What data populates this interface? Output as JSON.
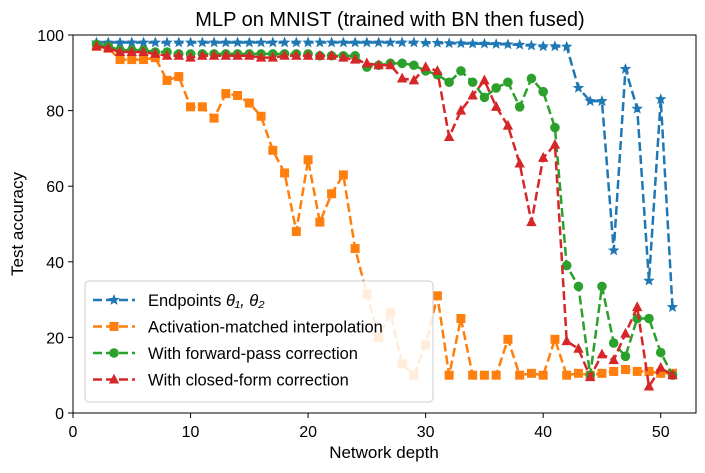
{
  "chart_data": {
    "type": "line",
    "title": "MLP on MNIST (trained with BN then fused)",
    "xlabel": "Network depth",
    "ylabel": "Test accuracy",
    "xlim": [
      0,
      53
    ],
    "ylim": [
      0,
      100
    ],
    "xticks": [
      0,
      10,
      20,
      30,
      40,
      50
    ],
    "yticks": [
      0,
      20,
      40,
      60,
      80,
      100
    ],
    "grid": false,
    "legend_position": "lower-left",
    "x": [
      2,
      3,
      4,
      5,
      6,
      7,
      8,
      9,
      10,
      11,
      12,
      13,
      14,
      15,
      16,
      17,
      18,
      19,
      20,
      21,
      22,
      23,
      24,
      25,
      26,
      27,
      28,
      29,
      30,
      31,
      32,
      33,
      34,
      35,
      36,
      37,
      38,
      39,
      40,
      41,
      42,
      43,
      44,
      45,
      46,
      47,
      48,
      49,
      50,
      51
    ],
    "series": [
      {
        "name": "Endpoints θ1, θ2",
        "legend_label": "Endpoints ",
        "legend_math": "θ₁, θ₂",
        "color": "#1f77b4",
        "marker": "star",
        "values": [
          98,
          98,
          98,
          98,
          98,
          98,
          98,
          98,
          98,
          98,
          98,
          98,
          98,
          98,
          98,
          98,
          98,
          98,
          98,
          98,
          98,
          98,
          98,
          98,
          98,
          98,
          98,
          98,
          97.9,
          97.9,
          97.8,
          97.8,
          97.7,
          97.7,
          97.6,
          97.5,
          97.4,
          97.2,
          97,
          97,
          96.9,
          86,
          82.5,
          82.5,
          43,
          91,
          80.5,
          35,
          83,
          28
        ]
      },
      {
        "name": "Activation-matched interpolation",
        "color": "#ff7f0e",
        "marker": "square",
        "values": [
          97,
          96.5,
          93.5,
          93.5,
          93.5,
          94,
          88,
          89,
          81,
          81,
          78,
          84.5,
          84,
          82,
          78.5,
          69.5,
          63.5,
          48,
          67,
          50.5,
          58,
          63,
          43.5,
          31.5,
          20,
          26.5,
          13,
          10,
          18,
          31,
          10,
          25,
          10,
          10,
          10,
          19.5,
          10,
          10.5,
          10,
          19.5,
          10,
          10.5,
          10,
          10.5,
          11,
          11.5,
          11,
          11,
          10.5,
          10.5
        ]
      },
      {
        "name": "With forward-pass correction",
        "color": "#2ca02c",
        "marker": "circle",
        "values": [
          97.5,
          97,
          96,
          96,
          96,
          95.5,
          95.5,
          95,
          95,
          95,
          95,
          95,
          95,
          95,
          95,
          95,
          95,
          95,
          95,
          94.5,
          94.5,
          94.5,
          94.5,
          91.5,
          92,
          92.5,
          92.5,
          92,
          90.5,
          89.5,
          87.5,
          90.5,
          87.5,
          83.5,
          86,
          87.5,
          81,
          88.5,
          85,
          75.5,
          39,
          33.5,
          10,
          33.5,
          18.5,
          15,
          25,
          25,
          16,
          10
        ]
      },
      {
        "name": "With closed-form correction",
        "color": "#d62728",
        "marker": "triangle",
        "values": [
          97,
          96.5,
          95.5,
          95.5,
          95.5,
          95,
          94.5,
          94.5,
          94,
          94.5,
          94.5,
          94.5,
          94.5,
          94.5,
          94,
          94,
          94.5,
          94.5,
          94.5,
          94.5,
          94.5,
          94,
          93.5,
          92.5,
          92,
          92,
          88.5,
          88,
          91.5,
          90.5,
          73,
          80,
          84,
          88,
          81,
          76,
          66,
          50.5,
          67.5,
          71,
          19,
          17,
          9.5,
          15.5,
          14,
          21,
          28,
          7,
          12,
          10
        ]
      }
    ]
  }
}
